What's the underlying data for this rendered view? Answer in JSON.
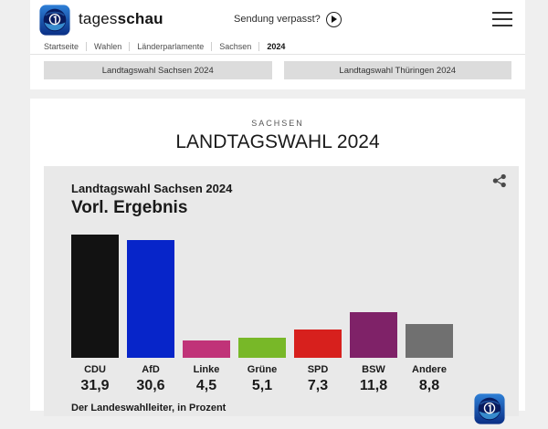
{
  "header": {
    "brand_regular": "tages",
    "brand_bold": "schau",
    "missed_show_label": "Sendung verpasst?"
  },
  "breadcrumb": {
    "items": [
      "Startseite",
      "Wahlen",
      "Länderparlamente",
      "Sachsen",
      "2024"
    ],
    "active": "2024"
  },
  "tabs": [
    {
      "label": "Landtagswahl Sachsen 2024"
    },
    {
      "label": "Landtagswahl Thüringen 2024"
    }
  ],
  "main": {
    "kicker": "SACHSEN",
    "title": "LANDTAGSWAHL 2024"
  },
  "colors": {
    "page_title_blue": "#1e67a8",
    "brand_blue_light": "#2e7fd6",
    "brand_blue_dark": "#0a2f85",
    "card_background": "#e9e9e9",
    "tab_background": "#dcdcdc",
    "page_background": "#efefef"
  },
  "chart_data": {
    "type": "bar",
    "title": "Landtagswahl Sachsen 2024",
    "subtitle": "Vorl. Ergebnis",
    "source": "Der Landeswahlleiter, in Prozent",
    "unit": "Prozent",
    "categories": [
      "CDU",
      "AfD",
      "Linke",
      "Grüne",
      "SPD",
      "BSW",
      "Andere"
    ],
    "values": [
      31.9,
      30.6,
      4.5,
      5.1,
      7.3,
      11.8,
      8.8
    ],
    "value_labels": [
      "31,9",
      "30,6",
      "4,5",
      "5,1",
      "7,3",
      "11,8",
      "8,8"
    ],
    "colors": [
      "#121212",
      "#0725c9",
      "#c03378",
      "#78b828",
      "#d7201d",
      "#7f2268",
      "#707070"
    ],
    "ylim": [
      0,
      31.9
    ],
    "grid": false,
    "legend": false
  }
}
